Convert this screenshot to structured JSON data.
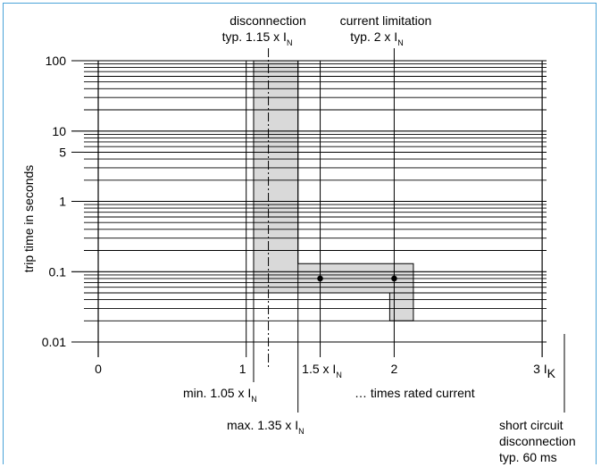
{
  "chart_data": {
    "type": "line",
    "title": "",
    "ylabel": "trip time in seconds",
    "xlabel": "… times rated current",
    "y_scale": "log",
    "ylim": [
      0.01,
      100
    ],
    "xlim": [
      0,
      3
    ],
    "grid": true,
    "y_tick_labels": [
      {
        "value": 100,
        "label": "100"
      },
      {
        "value": 10,
        "label": "10"
      },
      {
        "value": 5,
        "label": "5"
      },
      {
        "value": 1,
        "label": "1"
      },
      {
        "value": 0.1,
        "label": "0.1"
      },
      {
        "value": 0.01,
        "label": "0.01"
      }
    ],
    "x_tick_labels": [
      {
        "value": 0,
        "label": "0"
      },
      {
        "value": 1,
        "label": "1"
      },
      {
        "value": 1.5,
        "label": "1.5 x I",
        "sub": "N"
      },
      {
        "value": 2,
        "label": "2"
      },
      {
        "value": 3,
        "label": "3 I",
        "sub": "K"
      }
    ],
    "trip_band": {
      "fill": "#d9d9d9",
      "outline": [
        [
          1.05,
          100
        ],
        [
          1.35,
          100
        ],
        [
          1.35,
          0.13
        ],
        [
          2.13,
          0.13
        ],
        [
          2.13,
          0.02
        ],
        [
          1.97,
          0.02
        ],
        [
          1.97,
          0.05
        ],
        [
          1.05,
          0.05
        ]
      ]
    },
    "typical_current_line": {
      "x": 1.15,
      "style": "dash-dot"
    },
    "points": [
      {
        "x": 1.5,
        "y": 0.08
      },
      {
        "x": 2,
        "y": 0.08
      }
    ],
    "annotations": {
      "disconnection": {
        "line1": "disconnection",
        "line2": "typ. 1.15 x I",
        "sub": "N",
        "x": 1.15
      },
      "current_limitation": {
        "line1": "current limitation",
        "line2": "typ. 2 x I",
        "sub": "N",
        "x": 2
      },
      "min": {
        "text": "min. 1.05 x I",
        "sub": "N",
        "x": 1.05
      },
      "max": {
        "text": "max. 1.35 x I",
        "sub": "N",
        "x": 1.35
      },
      "short_circuit": {
        "lines": [
          "short circuit",
          "disconnection",
          "typ. 60 ms"
        ]
      }
    },
    "colors": {
      "band": "#d9d9d9",
      "frame": "#4aa3d8",
      "ink": "#000000"
    }
  }
}
